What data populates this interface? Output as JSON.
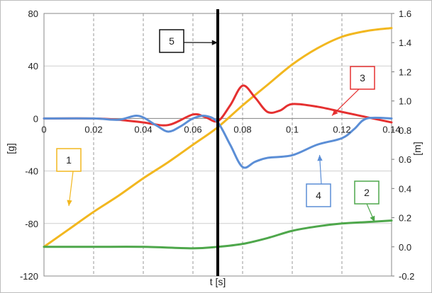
{
  "chart_data": {
    "type": "line",
    "xlabel": "t [s]",
    "ylabel_left": "[g]",
    "ylabel_right": "[m]",
    "xlim": [
      0,
      0.14
    ],
    "ylim_left": [
      -120,
      80
    ],
    "ylim_right": [
      -0.2,
      1.6
    ],
    "grid": true,
    "x_ticks": [
      "0",
      "0.02",
      "0.04",
      "0.06",
      "0.08",
      "0.1",
      "0.12",
      "0.14"
    ],
    "y_ticks_left": [
      "80",
      "40",
      "0",
      "-40",
      "-80",
      "-120"
    ],
    "y_ticks_right": [
      "1.6",
      "1.4",
      "1.2",
      "1.0",
      "0.8",
      "0.6",
      "0.4",
      "0.2",
      "0.0",
      "-0.2"
    ],
    "vline_x": 0.07,
    "series": [
      {
        "name": "1",
        "axis": "right",
        "color": "#f2b71f",
        "x": [
          0,
          0.01,
          0.02,
          0.03,
          0.04,
          0.05,
          0.06,
          0.07,
          0.08,
          0.09,
          0.1,
          0.11,
          0.12,
          0.13,
          0.14
        ],
        "y": [
          0.0,
          0.12,
          0.24,
          0.35,
          0.47,
          0.58,
          0.7,
          0.82,
          0.97,
          1.11,
          1.25,
          1.36,
          1.44,
          1.48,
          1.5
        ]
      },
      {
        "name": "2",
        "axis": "right",
        "color": "#4ea74b",
        "x": [
          0,
          0.02,
          0.04,
          0.06,
          0.07,
          0.08,
          0.09,
          0.1,
          0.11,
          0.12,
          0.13,
          0.14
        ],
        "y": [
          0.0,
          0.0,
          0.0,
          -0.01,
          0.0,
          0.02,
          0.06,
          0.11,
          0.14,
          0.16,
          0.17,
          0.18
        ]
      },
      {
        "name": "3",
        "axis": "left",
        "color": "#e53030",
        "x": [
          0,
          0.02,
          0.03,
          0.04,
          0.05,
          0.06,
          0.065,
          0.07,
          0.075,
          0.08,
          0.085,
          0.09,
          0.095,
          0.1,
          0.11,
          0.12,
          0.13,
          0.14
        ],
        "y": [
          0,
          0,
          -1,
          -3,
          -5,
          3,
          1,
          -2,
          10,
          25,
          16,
          5,
          6,
          11,
          9,
          5,
          1,
          -3
        ]
      },
      {
        "name": "4",
        "axis": "left",
        "color": "#5b8ed6",
        "x": [
          0,
          0.02,
          0.03,
          0.038,
          0.045,
          0.05,
          0.055,
          0.06,
          0.065,
          0.07,
          0.075,
          0.08,
          0.085,
          0.09,
          0.1,
          0.11,
          0.12,
          0.125,
          0.13,
          0.14
        ],
        "y": [
          0,
          0,
          -1,
          2,
          -5,
          -10,
          -6,
          0,
          2,
          -3,
          -20,
          -37,
          -33,
          -30,
          -28,
          -20,
          -15,
          -8,
          0,
          0
        ]
      }
    ],
    "callouts": [
      {
        "label": "1",
        "color": "#f2b71f",
        "target": [
          0.01,
          0.28
        ]
      },
      {
        "label": "2",
        "color": "#4ea74b",
        "target": [
          0.1332,
          0.17
        ]
      },
      {
        "label": "3",
        "color": "#e53030",
        "target": [
          0.116,
          0.9
        ]
      },
      {
        "label": "4",
        "color": "#5b8ed6",
        "target": [
          0.111,
          0.63
        ]
      },
      {
        "label": "5",
        "color": "#111111",
        "target": [
          0.07,
          1.4
        ]
      }
    ]
  }
}
